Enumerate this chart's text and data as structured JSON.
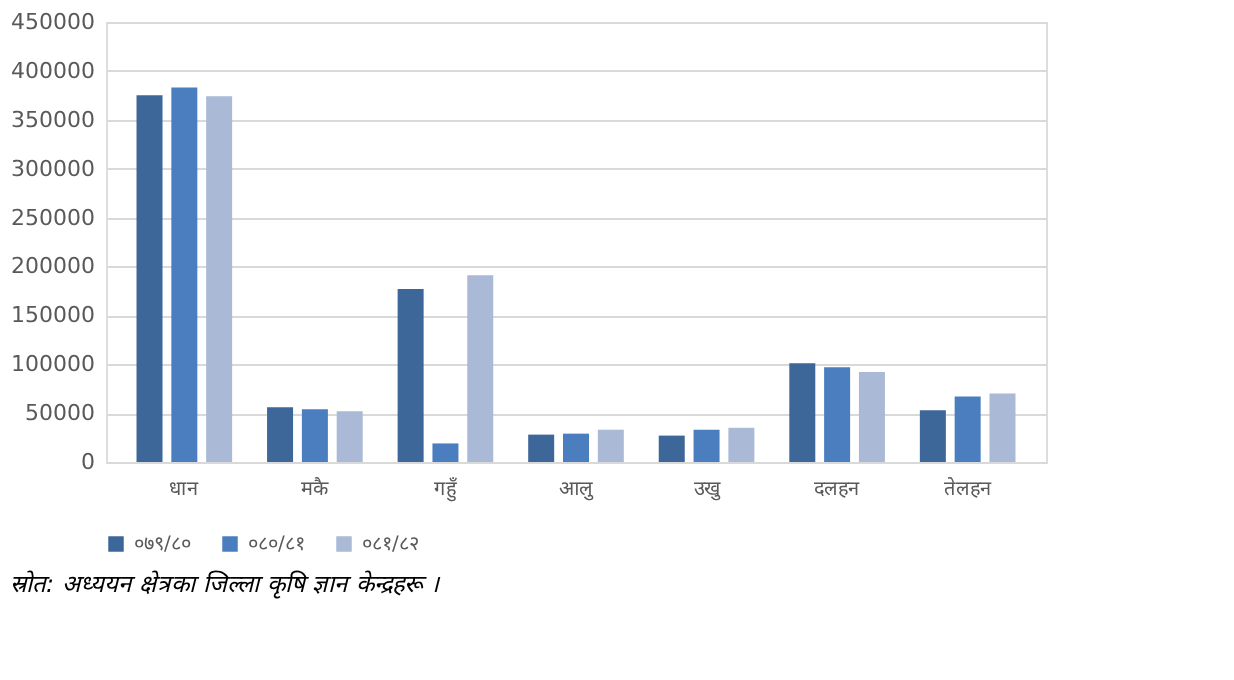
{
  "chart_data": {
    "type": "bar",
    "categories": [
      "धान",
      "मकै",
      "गहुँ",
      "आलु",
      "उखु",
      "दलहन",
      "तेलहन"
    ],
    "series": [
      {
        "name": "०७९/८०",
        "color": "#3d6699",
        "values": [
          375000,
          56000,
          177000,
          28000,
          27000,
          101000,
          53000
        ]
      },
      {
        "name": "०८०/८१",
        "color": "#4a7ebf",
        "values": [
          383000,
          54000,
          19000,
          29000,
          33000,
          97000,
          67000
        ]
      },
      {
        "name": "०८१/८२",
        "color": "#a9b9d6",
        "values": [
          374000,
          52000,
          191000,
          33000,
          35000,
          92000,
          70000
        ]
      }
    ],
    "ylim": [
      0,
      450000
    ],
    "yticks": [
      0,
      50000,
      100000,
      150000,
      200000,
      250000,
      300000,
      350000,
      400000,
      450000
    ],
    "grid": "y",
    "legend": "bottom",
    "annotations": [
      "स्रोत: अध्ययन क्षेत्रका जिल्ला कृषि ज्ञान केन्द्रहरू ।"
    ]
  }
}
